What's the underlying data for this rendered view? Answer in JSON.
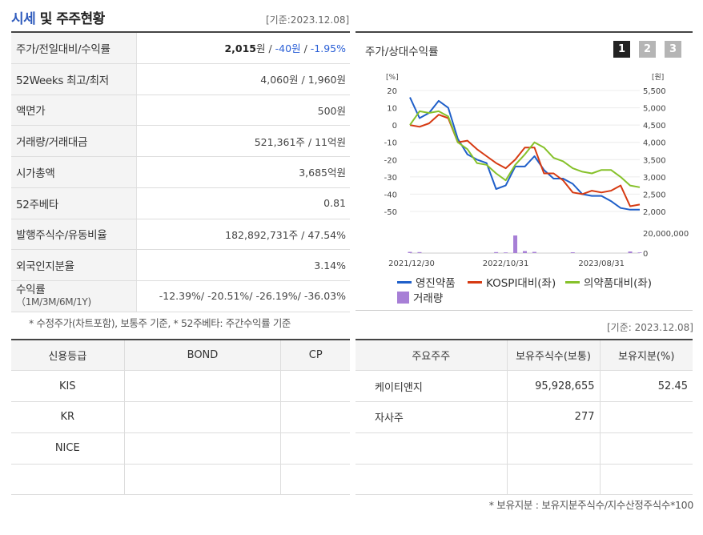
{
  "header": {
    "title_highlight": "시세",
    "title_rest": " 및 주주현황",
    "base_date": "[기준:2023.12.08]"
  },
  "summary": {
    "rows": [
      {
        "label": "주가/전일대비/수익률",
        "price": "2,015",
        "price_unit": "원 / ",
        "change": "-40원",
        "sep": " / ",
        "rate": "-1.95%"
      },
      {
        "label": "52Weeks 최고/최저",
        "value": "4,060원 / 1,960원"
      },
      {
        "label": "액면가",
        "value": "500원"
      },
      {
        "label": "거래량/거래대금",
        "value": "521,361주 / 11억원"
      },
      {
        "label": "시가총액",
        "value": "3,685억원"
      },
      {
        "label": "52주베타",
        "value": "0.81"
      },
      {
        "label": "발행주식수/유동비율",
        "value": "182,892,731주 / 47.54%"
      },
      {
        "label": "외국인지분율",
        "value": "3.14%"
      },
      {
        "label": "수익률",
        "label_sub": "（1M/3M/6M/1Y)",
        "value": "-12.39%/ -20.51%/ -26.19%/ -36.03%"
      }
    ],
    "footnote": "* 수정주가(차트포함), 보통주 기준, * 52주베타: 주간수익률 기준"
  },
  "chart_panel": {
    "title": "주가/상대수익률",
    "buttons": [
      "1",
      "2",
      "3"
    ],
    "active_button": "1"
  },
  "chart_data": {
    "type": "line",
    "left_axis_unit": "[%]",
    "right_axis_unit": "[원]",
    "left_ticks": [
      20,
      10,
      0,
      -10,
      -20,
      -30,
      -40,
      -50
    ],
    "right_ticks": [
      "5,500",
      "5,000",
      "4,500",
      "4,000",
      "3,500",
      "3,000",
      "2,500",
      "2,000"
    ],
    "volume_ticks": [
      "20,000,000",
      "0"
    ],
    "x_tick_labels": [
      "2021/12/30",
      "2022/10/31",
      "2023/08/31"
    ],
    "x_tick_index": [
      0,
      10,
      20
    ],
    "ylim_left": [
      -50,
      20
    ],
    "ylim_right": [
      2000,
      5500
    ],
    "series": [
      {
        "name": "영진약품",
        "axis": "left",
        "color": "#1f5fc9",
        "values": [
          16,
          4,
          7,
          14,
          10,
          -8,
          -17,
          -20,
          -22,
          -37,
          -35,
          -24,
          -24,
          -18,
          -26,
          -31,
          -31,
          -34,
          -40,
          -41,
          -41,
          -44,
          -48,
          -49,
          -49
        ]
      },
      {
        "name": "KOSPI대비(좌)",
        "axis": "left",
        "color": "#d63a12",
        "values": [
          0,
          -1,
          1,
          6,
          4,
          -10,
          -9,
          -14,
          -18,
          -22,
          -25,
          -20,
          -13,
          -13,
          -28,
          -28,
          -32,
          -39,
          -40,
          -38,
          -39,
          -38,
          -35,
          -47,
          -46
        ]
      },
      {
        "name": "의약품대비(좌)",
        "axis": "left",
        "color": "#86c12a",
        "values": [
          0,
          8,
          7,
          8,
          5,
          -10,
          -14,
          -22,
          -23,
          -28,
          -32,
          -23,
          -17,
          -10,
          -13,
          -19,
          -21,
          -25,
          -27,
          -28,
          -26,
          -26,
          -30,
          -35,
          -36
        ]
      }
    ],
    "volume": {
      "name": "거래량",
      "color": "#a77fd6",
      "values": [
        1500000,
        1200000,
        0,
        0,
        0,
        0,
        0,
        0,
        0,
        1200000,
        800000,
        22000000,
        2500000,
        1500000,
        0,
        0,
        0,
        1000000,
        0,
        0,
        0,
        0,
        0,
        2000000,
        800000
      ]
    }
  },
  "legend": {
    "s1": "영진약품",
    "s2": "KOSPI대비(좌)",
    "s3": "의약품대비(좌)",
    "vol": "거래량"
  },
  "credit": {
    "headers": [
      "신용등급",
      "BOND",
      "CP"
    ],
    "rows": [
      {
        "agency": "KIS",
        "bond": "",
        "cp": ""
      },
      {
        "agency": "KR",
        "bond": "",
        "cp": ""
      },
      {
        "agency": "NICE",
        "bond": "",
        "cp": ""
      },
      {
        "agency": "",
        "bond": "",
        "cp": ""
      }
    ]
  },
  "holders": {
    "base_date": "[기준: 2023.12.08]",
    "headers": [
      "주요주주",
      "보유주식수(보통)",
      "보유지분(%)"
    ],
    "rows": [
      {
        "name": "케이티앤지",
        "shares": "95,928,655",
        "pct": "52.45"
      },
      {
        "name": "자사주",
        "shares": "277",
        "pct": ""
      },
      {
        "name": "",
        "shares": "",
        "pct": ""
      },
      {
        "name": "",
        "shares": "",
        "pct": ""
      }
    ],
    "footnote": "* 보유지분 : 보유지분주식수/지수산정주식수*100"
  },
  "colors": {
    "negative": "#2a5fd6",
    "title_accent": "#2f5bbd"
  }
}
